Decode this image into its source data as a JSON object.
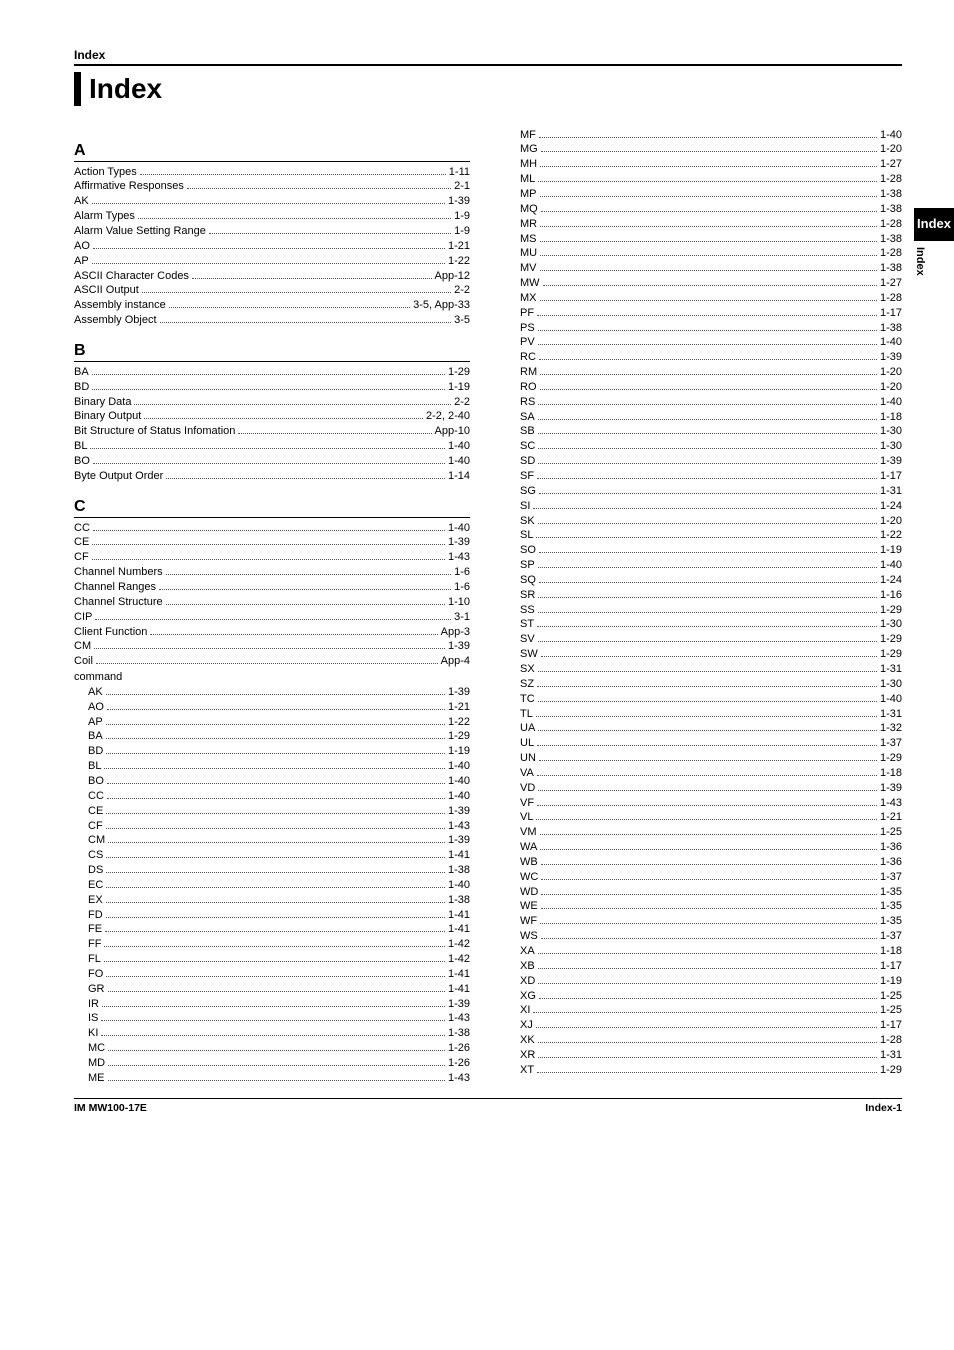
{
  "header_label": "Index",
  "title": "Index",
  "side_tab": {
    "black": "Index",
    "vert": "Index"
  },
  "footer": {
    "left": "IM MW100-17E",
    "right": "Index-1"
  },
  "sections": [
    {
      "letter": "A",
      "entries": [
        {
          "label": "Action Types",
          "page": "1-11"
        },
        {
          "label": "Affirmative Responses",
          "page": "2-1"
        },
        {
          "label": "AK",
          "page": "1-39"
        },
        {
          "label": "Alarm Types",
          "page": "1-9"
        },
        {
          "label": "Alarm Value Setting Range",
          "page": "1-9"
        },
        {
          "label": "AO",
          "page": "1-21"
        },
        {
          "label": "AP",
          "page": "1-22"
        },
        {
          "label": "ASCII Character Codes",
          "page": "App-12"
        },
        {
          "label": "ASCII Output",
          "page": "2-2"
        },
        {
          "label": "Assembly instance",
          "page": "3-5, App-33"
        },
        {
          "label": "Assembly Object",
          "page": "3-5"
        }
      ]
    },
    {
      "letter": "B",
      "entries": [
        {
          "label": "BA",
          "page": "1-29"
        },
        {
          "label": "BD",
          "page": "1-19"
        },
        {
          "label": "Binary Data",
          "page": "2-2"
        },
        {
          "label": "Binary Output",
          "page": "2-2, 2-40"
        },
        {
          "label": "Bit Structure of Status Infomation",
          "page": "App-10"
        },
        {
          "label": "BL",
          "page": "1-40"
        },
        {
          "label": "BO",
          "page": "1-40"
        },
        {
          "label": "Byte Output Order",
          "page": "1-14"
        }
      ]
    },
    {
      "letter": "C",
      "entries": [
        {
          "label": "CC",
          "page": "1-40"
        },
        {
          "label": "CE",
          "page": "1-39"
        },
        {
          "label": "CF",
          "page": "1-43"
        },
        {
          "label": "Channel Numbers",
          "page": "1-6"
        },
        {
          "label": "Channel Ranges",
          "page": "1-6"
        },
        {
          "label": "Channel Structure",
          "page": "1-10"
        },
        {
          "label": "CIP",
          "page": "3-1"
        },
        {
          "label": "Client Function",
          "page": "App-3"
        },
        {
          "label": "CM",
          "page": "1-39"
        },
        {
          "label": "Coil",
          "page": "App-4"
        },
        {
          "label": "command",
          "subhead": true
        },
        {
          "label": "AK",
          "page": "1-39",
          "indent": true
        },
        {
          "label": "AO",
          "page": "1-21",
          "indent": true
        },
        {
          "label": "AP",
          "page": "1-22",
          "indent": true
        },
        {
          "label": "BA",
          "page": "1-29",
          "indent": true
        },
        {
          "label": "BD",
          "page": "1-19",
          "indent": true
        },
        {
          "label": "BL",
          "page": "1-40",
          "indent": true
        },
        {
          "label": "BO",
          "page": "1-40",
          "indent": true
        },
        {
          "label": "CC",
          "page": "1-40",
          "indent": true
        },
        {
          "label": "CE",
          "page": "1-39",
          "indent": true
        },
        {
          "label": "CF",
          "page": "1-43",
          "indent": true
        },
        {
          "label": "CM",
          "page": "1-39",
          "indent": true
        },
        {
          "label": "CS",
          "page": "1-41",
          "indent": true
        },
        {
          "label": "DS",
          "page": "1-38",
          "indent": true
        },
        {
          "label": "EC",
          "page": "1-40",
          "indent": true
        },
        {
          "label": "EX",
          "page": "1-38",
          "indent": true
        },
        {
          "label": "FD",
          "page": "1-41",
          "indent": true
        },
        {
          "label": "FE",
          "page": "1-41",
          "indent": true
        },
        {
          "label": "FF",
          "page": "1-42",
          "indent": true
        },
        {
          "label": "FL",
          "page": "1-42",
          "indent": true
        },
        {
          "label": "FO",
          "page": "1-41",
          "indent": true
        },
        {
          "label": "GR",
          "page": "1-41",
          "indent": true
        },
        {
          "label": "IR",
          "page": "1-39",
          "indent": true
        },
        {
          "label": "IS",
          "page": "1-43",
          "indent": true
        },
        {
          "label": "KI",
          "page": "1-38",
          "indent": true
        },
        {
          "label": "MC",
          "page": "1-26",
          "indent": true
        },
        {
          "label": "MD",
          "page": "1-26",
          "indent": true
        },
        {
          "label": "ME",
          "page": "1-43",
          "indent": true
        }
      ]
    }
  ],
  "col2_entries": [
    {
      "label": "MF",
      "page": "1-40",
      "indent": true
    },
    {
      "label": "MG",
      "page": "1-20",
      "indent": true
    },
    {
      "label": "MH",
      "page": "1-27",
      "indent": true
    },
    {
      "label": "ML",
      "page": "1-28",
      "indent": true
    },
    {
      "label": "MP",
      "page": "1-38",
      "indent": true
    },
    {
      "label": "MQ",
      "page": "1-38",
      "indent": true
    },
    {
      "label": "MR",
      "page": "1-28",
      "indent": true
    },
    {
      "label": "MS",
      "page": "1-38",
      "indent": true
    },
    {
      "label": "MU",
      "page": "1-28",
      "indent": true
    },
    {
      "label": "MV",
      "page": "1-38",
      "indent": true
    },
    {
      "label": "MW",
      "page": "1-27",
      "indent": true
    },
    {
      "label": "MX",
      "page": "1-28",
      "indent": true
    },
    {
      "label": "PF",
      "page": "1-17",
      "indent": true
    },
    {
      "label": "PS",
      "page": "1-38",
      "indent": true
    },
    {
      "label": "PV",
      "page": "1-40",
      "indent": true
    },
    {
      "label": "RC",
      "page": "1-39",
      "indent": true
    },
    {
      "label": "RM",
      "page": "1-20",
      "indent": true
    },
    {
      "label": "RO",
      "page": "1-20",
      "indent": true
    },
    {
      "label": "RS",
      "page": "1-40",
      "indent": true
    },
    {
      "label": "SA",
      "page": "1-18",
      "indent": true
    },
    {
      "label": "SB",
      "page": "1-30",
      "indent": true
    },
    {
      "label": "SC",
      "page": "1-30",
      "indent": true
    },
    {
      "label": "SD",
      "page": "1-39",
      "indent": true
    },
    {
      "label": "SF",
      "page": "1-17",
      "indent": true
    },
    {
      "label": "SG",
      "page": "1-31",
      "indent": true
    },
    {
      "label": "SI",
      "page": "1-24",
      "indent": true
    },
    {
      "label": "SK",
      "page": "1-20",
      "indent": true
    },
    {
      "label": "SL",
      "page": "1-22",
      "indent": true
    },
    {
      "label": "SO",
      "page": "1-19",
      "indent": true
    },
    {
      "label": "SP",
      "page": "1-40",
      "indent": true
    },
    {
      "label": "SQ",
      "page": "1-24",
      "indent": true
    },
    {
      "label": "SR",
      "page": "1-16",
      "indent": true
    },
    {
      "label": "SS",
      "page": "1-29",
      "indent": true
    },
    {
      "label": "ST",
      "page": "1-30",
      "indent": true
    },
    {
      "label": "SV",
      "page": "1-29",
      "indent": true
    },
    {
      "label": "SW",
      "page": "1-29",
      "indent": true
    },
    {
      "label": "SX",
      "page": "1-31",
      "indent": true
    },
    {
      "label": "SZ",
      "page": "1-30",
      "indent": true
    },
    {
      "label": "TC",
      "page": "1-40",
      "indent": true
    },
    {
      "label": "TL",
      "page": "1-31",
      "indent": true
    },
    {
      "label": "UA",
      "page": "1-32",
      "indent": true
    },
    {
      "label": "UL",
      "page": "1-37",
      "indent": true
    },
    {
      "label": "UN",
      "page": "1-29",
      "indent": true
    },
    {
      "label": "VA",
      "page": "1-18",
      "indent": true
    },
    {
      "label": "VD",
      "page": "1-39",
      "indent": true
    },
    {
      "label": "VF",
      "page": "1-43",
      "indent": true
    },
    {
      "label": "VL",
      "page": "1-21",
      "indent": true
    },
    {
      "label": "VM",
      "page": "1-25",
      "indent": true
    },
    {
      "label": "WA",
      "page": "1-36",
      "indent": true
    },
    {
      "label": "WB",
      "page": "1-36",
      "indent": true
    },
    {
      "label": "WC",
      "page": "1-37",
      "indent": true
    },
    {
      "label": "WD",
      "page": "1-35",
      "indent": true
    },
    {
      "label": "WE",
      "page": "1-35",
      "indent": true
    },
    {
      "label": "WF",
      "page": "1-35",
      "indent": true
    },
    {
      "label": "WS",
      "page": "1-37",
      "indent": true
    },
    {
      "label": "XA",
      "page": "1-18",
      "indent": true
    },
    {
      "label": "XB",
      "page": "1-17",
      "indent": true
    },
    {
      "label": "XD",
      "page": "1-19",
      "indent": true
    },
    {
      "label": "XG",
      "page": "1-25",
      "indent": true
    },
    {
      "label": "XI",
      "page": "1-25",
      "indent": true
    },
    {
      "label": "XJ",
      "page": "1-17",
      "indent": true
    },
    {
      "label": "XK",
      "page": "1-28",
      "indent": true
    },
    {
      "label": "XR",
      "page": "1-31",
      "indent": true
    },
    {
      "label": "XT",
      "page": "1-29",
      "indent": true
    }
  ]
}
